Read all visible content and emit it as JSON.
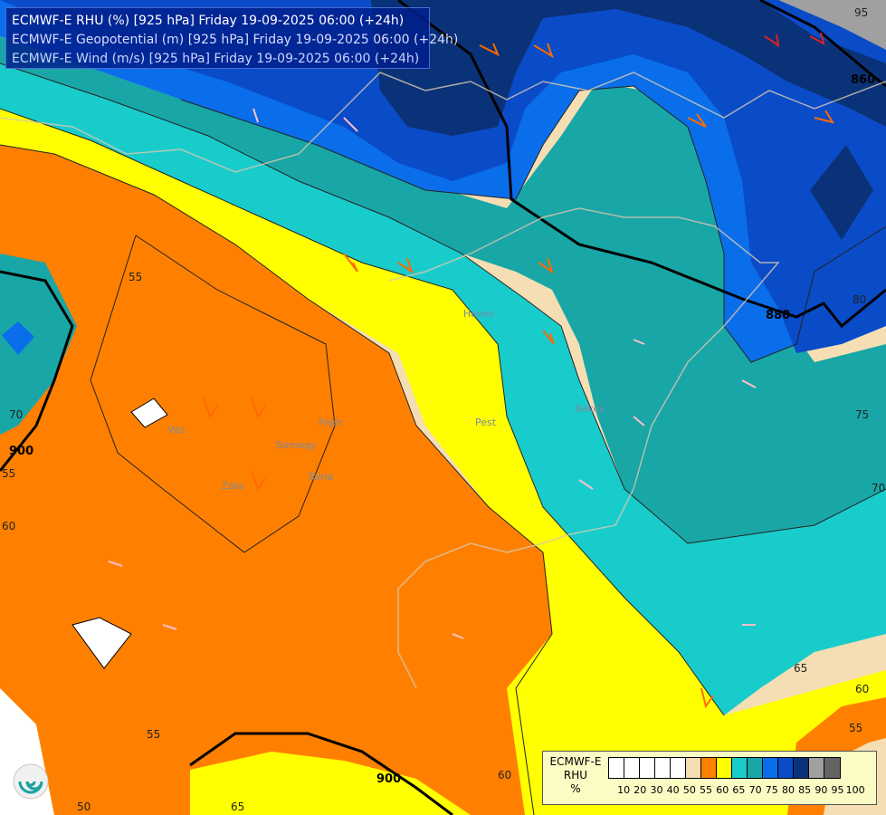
{
  "title": {
    "line1": "ECMWF-E RHU (%) [925 hPa] Friday 19-09-2025 06:00 (+24h)",
    "line2": "ECMWF-E Geopotential (m) [925 hPa] Friday 19-09-2025 06:00 (+24h)",
    "line3": "ECMWF-E Wind (m/s) [925 hPa] Friday 19-09-2025 06:00 (+24h)"
  },
  "legend": {
    "label_line1": "ECMWF-E",
    "label_line2": "RHU",
    "label_line3": "%",
    "ticks": [
      "10",
      "20",
      "30",
      "40",
      "50",
      "55",
      "60",
      "65",
      "70",
      "75",
      "80",
      "85",
      "90",
      "95",
      "100"
    ],
    "colors": [
      "#ffffff",
      "#ffffff",
      "#ffffff",
      "#ffffff",
      "#ffffff",
      "#f5deb3",
      "#ff8000",
      "#ffff00",
      "#19cccc",
      "#19a6a6",
      "#0a6eeb",
      "#0a4bc8",
      "#0a3278",
      "#a0a0a0",
      "#646464"
    ]
  },
  "map_labels": {
    "contour_55_a": "55",
    "contour_55_b": "55",
    "contour_60_a": "60",
    "contour_60_b": "60",
    "contour_60_c": "60",
    "contour_65_a": "65",
    "contour_65_b": "65",
    "contour_70_a": "70",
    "contour_70_b": "70",
    "contour_75": "75",
    "contour_80": "80",
    "contour_95": "95",
    "contour_50": "50",
    "contour_55_c": "55",
    "contour_55_d": "55",
    "geo_860": "860",
    "geo_880": "880",
    "geo_900_a": "900",
    "geo_900_b": "900",
    "river_vas": "Vas",
    "river_zala": "Zala",
    "river_somogy": "Somogy",
    "river_tolna": "Tolna",
    "river_fejer": "Fejér",
    "city_pest": "Pest",
    "region_heves": "Heves",
    "region_bekes": "Békés"
  },
  "colors": {
    "orange": "#ff8000",
    "wheat": "#f5deb3",
    "yellow": "#ffff00",
    "cyan": "#19cccc",
    "teal": "#19a6a6",
    "blue": "#0a6eeb",
    "dark_blue": "#0a4bc8",
    "navy": "#0a3278",
    "gray": "#a0a0a0"
  }
}
